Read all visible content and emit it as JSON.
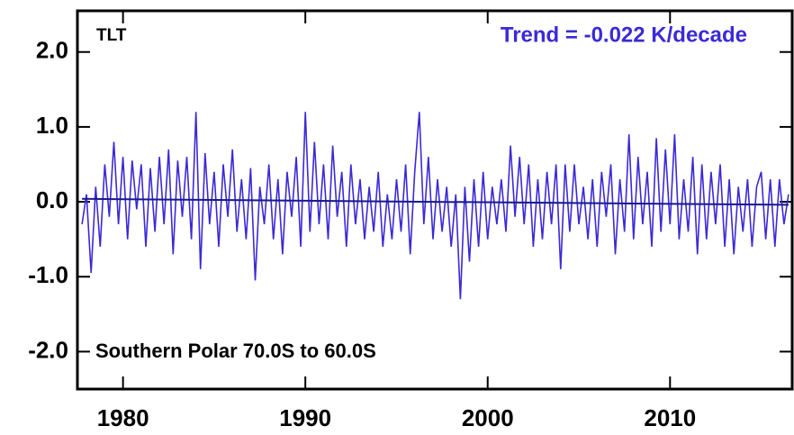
{
  "chart_data": {
    "type": "line",
    "title": "TLT",
    "annotations": [
      "Trend = -0.022 K/decade",
      "Southern Polar  70.0S to  60.0S"
    ],
    "x": [
      1977.75,
      1978,
      1978.25,
      1978.5,
      1978.75,
      1979,
      1979.25,
      1979.5,
      1979.75,
      1980,
      1980.25,
      1980.5,
      1980.75,
      1981,
      1981.25,
      1981.5,
      1981.75,
      1982,
      1982.25,
      1982.5,
      1982.75,
      1983,
      1983.25,
      1983.5,
      1983.75,
      1984,
      1984.25,
      1984.5,
      1984.75,
      1985,
      1985.25,
      1985.5,
      1985.75,
      1986,
      1986.25,
      1986.5,
      1986.75,
      1987,
      1987.25,
      1987.5,
      1987.75,
      1988,
      1988.25,
      1988.5,
      1988.75,
      1989,
      1989.25,
      1989.5,
      1989.75,
      1990,
      1990.25,
      1990.5,
      1990.75,
      1991,
      1991.25,
      1991.5,
      1991.75,
      1992,
      1992.25,
      1992.5,
      1992.75,
      1993,
      1993.25,
      1993.5,
      1993.75,
      1994,
      1994.25,
      1994.5,
      1994.75,
      1995,
      1995.25,
      1995.5,
      1995.75,
      1996,
      1996.25,
      1996.5,
      1996.75,
      1997,
      1997.25,
      1997.5,
      1997.75,
      1998,
      1998.25,
      1998.5,
      1998.75,
      1999,
      1999.25,
      1999.5,
      1999.75,
      2000,
      2000.25,
      2000.5,
      2000.75,
      2001,
      2001.25,
      2001.5,
      2001.75,
      2002,
      2002.25,
      2002.5,
      2002.75,
      2003,
      2003.25,
      2003.5,
      2003.75,
      2004,
      2004.25,
      2004.5,
      2004.75,
      2005,
      2005.25,
      2005.5,
      2005.75,
      2006,
      2006.25,
      2006.5,
      2006.75,
      2007,
      2007.25,
      2007.5,
      2007.75,
      2008,
      2008.25,
      2008.5,
      2008.75,
      2009,
      2009.25,
      2009.5,
      2009.75,
      2010,
      2010.25,
      2010.5,
      2010.75,
      2011,
      2011.25,
      2011.5,
      2011.75,
      2012,
      2012.25,
      2012.5,
      2012.75,
      2013,
      2013.25,
      2013.5,
      2013.75,
      2014,
      2014.25,
      2014.5,
      2014.75,
      2015,
      2015.25,
      2015.5,
      2015.75,
      2016,
      2016.25,
      2016.5
    ],
    "series": [
      {
        "color": "#3b2ad6",
        "values": [
          -0.3,
          0.1,
          -0.95,
          0.2,
          -0.6,
          0.5,
          -0.2,
          0.8,
          -0.3,
          0.6,
          -0.5,
          0.55,
          -0.1,
          0.5,
          -0.6,
          0.45,
          -0.4,
          0.6,
          -0.3,
          0.7,
          -0.7,
          0.55,
          -0.2,
          0.6,
          -0.5,
          1.2,
          -0.9,
          0.65,
          -0.3,
          0.4,
          -0.6,
          0.5,
          -0.2,
          0.7,
          -0.4,
          0.3,
          -0.5,
          0.45,
          -1.05,
          0.2,
          -0.3,
          0.5,
          -0.5,
          0.3,
          -0.7,
          0.4,
          -0.2,
          0.6,
          -0.6,
          1.2,
          -0.4,
          0.8,
          -0.3,
          0.5,
          -0.5,
          0.75,
          -0.2,
          0.4,
          -0.6,
          0.5,
          -0.3,
          0.3,
          -0.5,
          0.2,
          -0.4,
          0.4,
          -0.6,
          0.1,
          -0.5,
          0.3,
          -0.4,
          0.5,
          -0.7,
          0.4,
          1.2,
          -0.3,
          0.6,
          -0.5,
          0.3,
          -0.4,
          0.2,
          -0.6,
          0.1,
          -1.3,
          0.2,
          -0.8,
          0.3,
          -0.6,
          0.4,
          -0.5,
          0.2,
          -0.3,
          0.3,
          -0.4,
          0.75,
          -0.2,
          0.6,
          -0.3,
          0.5,
          -0.6,
          0.3,
          -0.5,
          0.4,
          -0.3,
          0.5,
          -0.9,
          0.5,
          -0.4,
          0.5,
          -0.3,
          0.2,
          -0.5,
          0.3,
          -0.6,
          0.4,
          -0.2,
          0.5,
          -0.7,
          0.3,
          -0.4,
          0.9,
          -0.5,
          0.6,
          -0.3,
          0.4,
          -0.6,
          0.85,
          -0.4,
          0.7,
          -0.3,
          0.9,
          -0.5,
          0.3,
          -0.4,
          0.6,
          -0.7,
          0.5,
          -0.5,
          0.4,
          -0.3,
          0.5,
          -0.6,
          0.3,
          -0.7,
          0.2,
          -0.4,
          0.3,
          -0.6,
          0.2,
          0.4,
          -0.5,
          0.3,
          -0.6,
          0.3,
          -0.3,
          0.1
        ]
      }
    ],
    "trend_line": {
      "color": "#1a1a8c",
      "x": [
        1977.75,
        2016.5
      ],
      "values": [
        0.04,
        -0.04
      ]
    },
    "xlim": [
      1977.5,
      2016.7
    ],
    "ylim": [
      -2.5,
      2.55
    ],
    "xticks": [
      1980,
      1990,
      2000,
      2010
    ],
    "yticks": [
      {
        "value": -2,
        "label": "-2.0"
      },
      {
        "value": -1,
        "label": "-1.0"
      },
      {
        "value": 0,
        "label": "0.0"
      },
      {
        "value": 1,
        "label": "1.0"
      },
      {
        "value": 2,
        "label": "2.0"
      }
    ]
  }
}
